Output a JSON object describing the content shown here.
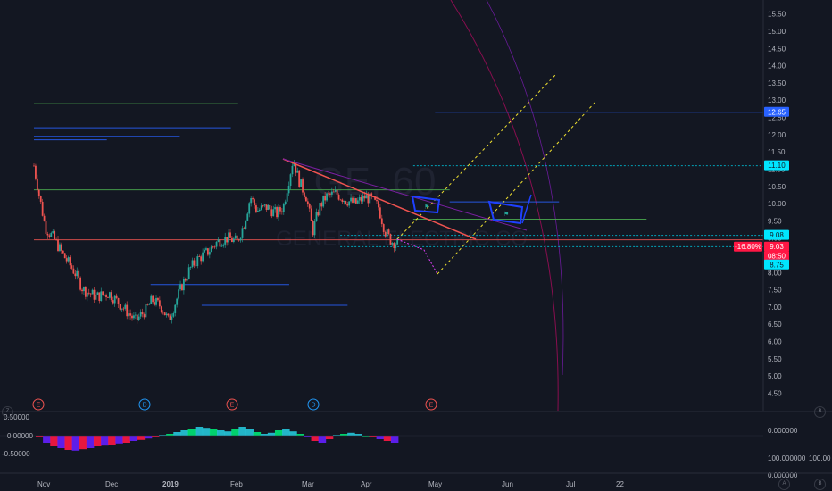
{
  "colors": {
    "background": "#131722",
    "candle_up": "#26a69a",
    "candle_down": "#ef5350",
    "trendline": "#ef5350",
    "forecast": "#f0e130",
    "blue_level": "#2962ff",
    "cyan_level": "#00bcd4",
    "green_level": "#4caf50",
    "magenta_arc": "#880e4f",
    "pattern": "#1e40ff"
  },
  "watermark": {
    "symbol": "GE, 60",
    "name": "GENERAL ELECTRIC CO"
  },
  "price_tags": [
    {
      "label": "12.65",
      "price": 12.65,
      "style": "blue"
    },
    {
      "label": "11.10",
      "price": 11.1,
      "style": "cyan"
    },
    {
      "label": "9.08",
      "price": 9.08,
      "style": "cyan"
    },
    {
      "label": "-16.80%",
      "price": 8.74,
      "style": "red"
    },
    {
      "label": "9.03",
      "price": 8.74,
      "style": "red"
    },
    {
      "label": "08:50",
      "price": 8.47,
      "style": "red"
    },
    {
      "label": "8.75",
      "price": 8.22,
      "style": "cyan"
    }
  ],
  "events": [
    {
      "label": "E",
      "color": "#ef5350",
      "x": "Nov"
    },
    {
      "label": "D",
      "color": "#2196f3",
      "x": "Dec"
    },
    {
      "label": "E",
      "color": "#ef5350",
      "x": "Feb"
    },
    {
      "label": "D",
      "color": "#2196f3",
      "x": "Mar"
    },
    {
      "label": "E",
      "color": "#ef5350",
      "x": "Apr"
    }
  ],
  "oscillator": {
    "ticks": [
      "0.50000",
      "0.00000",
      "-0.50000"
    ],
    "right_label": "0.000000",
    "right_bottom_labels": [
      "100.000000",
      "100.00",
      "0.000000"
    ]
  },
  "corner_labels": {
    "left": "Z",
    "right_a": "A",
    "right_b": "B"
  },
  "chart_data": {
    "type": "candlestick",
    "title": "",
    "ylim": [
      4.2,
      15.7
    ],
    "y_ticks": [
      "15.50",
      "15.00",
      "14.50",
      "14.00",
      "13.50",
      "13.00",
      "12.50",
      "12.00",
      "11.50",
      "11.00",
      "10.50",
      "10.00",
      "9.50",
      "9.00",
      "8.50",
      "8.00",
      "7.50",
      "7.00",
      "6.50",
      "6.00",
      "5.50",
      "5.00",
      "4.50"
    ],
    "x_ticks": [
      "Nov",
      "Dec",
      "2019",
      "Feb",
      "Mar",
      "Apr",
      "May",
      "Jun",
      "Jul",
      "22"
    ],
    "price_path": [
      [
        0,
        11.1
      ],
      [
        3,
        10.3
      ],
      [
        7,
        9.3
      ],
      [
        12,
        9.0
      ],
      [
        18,
        8.5
      ],
      [
        25,
        8.0
      ],
      [
        30,
        7.5
      ],
      [
        38,
        7.3
      ],
      [
        46,
        7.4
      ],
      [
        52,
        7.1
      ],
      [
        58,
        6.8
      ],
      [
        62,
        6.6
      ],
      [
        68,
        6.9
      ],
      [
        72,
        7.2
      ],
      [
        78,
        7.0
      ],
      [
        82,
        6.6
      ],
      [
        86,
        7.1
      ],
      [
        90,
        7.6
      ],
      [
        95,
        8.1
      ],
      [
        100,
        8.4
      ],
      [
        106,
        8.6
      ],
      [
        112,
        8.9
      ],
      [
        118,
        9.0
      ],
      [
        124,
        8.9
      ],
      [
        128,
        9.4
      ],
      [
        132,
        10.2
      ],
      [
        136,
        9.8
      ],
      [
        142,
        9.9
      ],
      [
        148,
        9.7
      ],
      [
        152,
        9.9
      ],
      [
        158,
        11.3
      ],
      [
        162,
        10.6
      ],
      [
        166,
        10.2
      ],
      [
        170,
        9.2
      ],
      [
        174,
        9.9
      ],
      [
        178,
        10.2
      ],
      [
        184,
        10.3
      ],
      [
        190,
        10.1
      ],
      [
        196,
        10.0
      ],
      [
        202,
        10.2
      ],
      [
        206,
        10.1
      ],
      [
        210,
        9.9
      ],
      [
        214,
        9.2
      ],
      [
        218,
        8.9
      ],
      [
        222,
        8.85
      ]
    ],
    "levels": [
      {
        "price": 12.65,
        "color": "blue",
        "from": 0.55,
        "to": 1.0
      },
      {
        "price": 11.1,
        "color": "cyan",
        "from": 0.52,
        "to": 1.0
      },
      {
        "price": 9.08,
        "color": "cyan",
        "from": 0.42,
        "to": 1.0
      },
      {
        "price": 8.75,
        "color": "cyan",
        "from": 0.42,
        "to": 1.0
      },
      {
        "price": 8.95,
        "color": "red",
        "from": 0.0,
        "to": 1.0
      },
      {
        "price": 9.55,
        "color": "green",
        "from": 0.52,
        "to": 0.84
      },
      {
        "price": 10.05,
        "color": "blue",
        "from": 0.57,
        "to": 0.72
      },
      {
        "price": 10.4,
        "color": "green",
        "from": 0.0,
        "to": 0.57
      },
      {
        "price": 12.9,
        "color": "green",
        "from": 0.0,
        "to": 0.28
      },
      {
        "price": 12.2,
        "color": "blue",
        "from": 0.0,
        "to": 0.27
      },
      {
        "price": 11.95,
        "color": "blue",
        "from": 0.0,
        "to": 0.2
      },
      {
        "price": 11.85,
        "color": "blue",
        "from": 0.0,
        "to": 0.1
      },
      {
        "price": 7.65,
        "color": "blue",
        "from": 0.16,
        "to": 0.35
      },
      {
        "price": 7.05,
        "color": "blue",
        "from": 0.23,
        "to": 0.43
      }
    ],
    "oscillator_values": [
      -0.05,
      -0.2,
      -0.3,
      -0.35,
      -0.4,
      -0.42,
      -0.38,
      -0.35,
      -0.3,
      -0.28,
      -0.25,
      -0.22,
      -0.2,
      -0.15,
      -0.12,
      -0.08,
      -0.05,
      0.02,
      0.05,
      0.1,
      0.15,
      0.2,
      0.25,
      0.22,
      0.18,
      0.15,
      0.12,
      0.2,
      0.25,
      0.18,
      0.1,
      0.05,
      0.08,
      0.15,
      0.2,
      0.12,
      0.05,
      -0.05,
      -0.15,
      -0.2,
      -0.1,
      0.02,
      0.05,
      0.08,
      0.05,
      0.0,
      -0.05,
      -0.1,
      -0.15,
      -0.2
    ]
  }
}
